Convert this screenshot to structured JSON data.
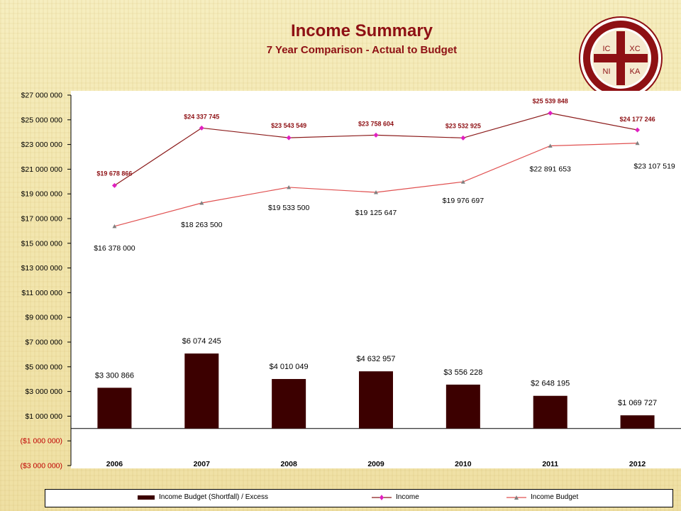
{
  "chart_data": {
    "type": "bar",
    "title": "Income Summary",
    "subtitle": "7 Year Comparison  - Actual to Budget",
    "categories": [
      "2006",
      "2007",
      "2008",
      "2009",
      "2010",
      "2011",
      "2012"
    ],
    "ylim": [
      -3000000,
      27000000
    ],
    "yticks": [
      "$27 000 000",
      "$25 000 000",
      "$23 000 000",
      "$21 000 000",
      "$19 000 000",
      "$17 000 000",
      "$15 000 000",
      "$13 000 000",
      "$11 000 000",
      "$9 000 000",
      "$7 000 000",
      "$5 000 000",
      "$3 000 000",
      "$1 000 000",
      "($1 000 000)",
      "($3 000 000)"
    ],
    "ytick_values": [
      27000000,
      25000000,
      23000000,
      21000000,
      19000000,
      17000000,
      15000000,
      13000000,
      11000000,
      9000000,
      7000000,
      5000000,
      3000000,
      1000000,
      -1000000,
      -3000000
    ],
    "series": [
      {
        "name": "Income Budget (Shortfall) / Excess",
        "kind": "bar",
        "color": "#3c0000",
        "values": [
          3300866,
          6074245,
          4010049,
          4632957,
          3556228,
          2648195,
          1069727
        ],
        "labels": [
          "$3 300 866",
          "$6 074 245",
          "$4 010 049",
          "$4 632 957",
          "$3 556 228",
          "$2 648 195",
          "$1 069 727"
        ]
      },
      {
        "name": "Income",
        "kind": "line",
        "color": "#8b1a1a",
        "marker_color": "#e020c0",
        "values": [
          19678866,
          24337745,
          23543549,
          23758604,
          23532925,
          25539848,
          24177246
        ],
        "labels": [
          "$19 678 866",
          "$24 337 745",
          "$23 543 549",
          "$23 758 604",
          "$23 532 925",
          "$25 539 848",
          "$24 177 246"
        ]
      },
      {
        "name": "Income Budget",
        "kind": "line",
        "color": "#e05050",
        "marker_color": "#808080",
        "values": [
          16378000,
          18263500,
          19533500,
          19125647,
          19976697,
          22891653,
          23107519
        ],
        "labels": [
          "$16 378 000",
          "$18 263 500",
          "$19 533 500",
          "$19 125 647",
          "$19 976 697",
          "$22 891 653",
          "$23 107 519"
        ]
      }
    ],
    "legend_position": "bottom",
    "grid": false
  },
  "colors": {
    "title": "#8e1014",
    "negative_tick": "#c00000"
  }
}
